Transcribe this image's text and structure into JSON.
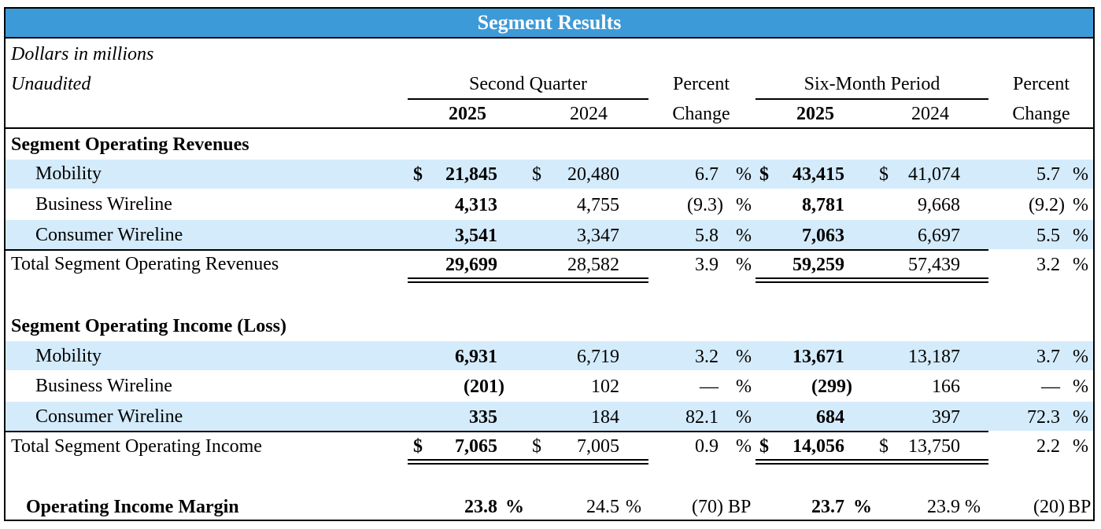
{
  "title": "Segment Results",
  "header": {
    "note1": "Dollars in millions",
    "note2": "Unaudited",
    "second_quarter": "Second Quarter",
    "six_month": "Six-Month Period",
    "percent": "Percent",
    "change": "Change",
    "y2025": "2025",
    "y2024": "2024"
  },
  "revenues": {
    "heading": "Segment Operating Revenues",
    "rows": [
      {
        "label": "Mobility",
        "q25": "21,845",
        "q24": "20,480",
        "qchg": "6.7",
        "s25": "43,415",
        "s24": "41,074",
        "schg": "5.7"
      },
      {
        "label": "Business Wireline",
        "q25": "4,313",
        "q24": "4,755",
        "qchg": "(9.3)",
        "s25": "8,781",
        "s24": "9,668",
        "schg": "(9.2)"
      },
      {
        "label": "Consumer Wireline",
        "q25": "3,541",
        "q24": "3,347",
        "qchg": "5.8",
        "s25": "7,063",
        "s24": "6,697",
        "schg": "5.5"
      }
    ],
    "total": {
      "label": "Total Segment Operating Revenues",
      "q25": "29,699",
      "q24": "28,582",
      "qchg": "3.9",
      "s25": "59,259",
      "s24": "57,439",
      "schg": "3.2"
    }
  },
  "income": {
    "heading": "Segment Operating Income (Loss)",
    "rows": [
      {
        "label": "Mobility",
        "q25": "6,931",
        "q24": "6,719",
        "qchg": "3.2",
        "s25": "13,671",
        "s24": "13,187",
        "schg": "3.7"
      },
      {
        "label": "Business Wireline",
        "q25": "(201)",
        "q24": "102",
        "qchg": "—",
        "s25": "(299)",
        "s24": "166",
        "schg": "—"
      },
      {
        "label": "Consumer Wireline",
        "q25": "335",
        "q24": "184",
        "qchg": "82.1",
        "s25": "684",
        "s24": "397",
        "schg": "72.3"
      }
    ],
    "total": {
      "label": "Total Segment Operating Income",
      "q25": "7,065",
      "q24": "7,005",
      "qchg": "0.9",
      "s25": "14,056",
      "s24": "13,750",
      "schg": "2.2"
    }
  },
  "margin": {
    "label": "Operating Income Margin",
    "q25": "23.8",
    "q24": "24.5",
    "qchg": "(70)",
    "s25": "23.7",
    "s24": "23.9",
    "schg": "(20)"
  },
  "symbols": {
    "dollar": "$",
    "pct": "%",
    "bp": "BP"
  }
}
